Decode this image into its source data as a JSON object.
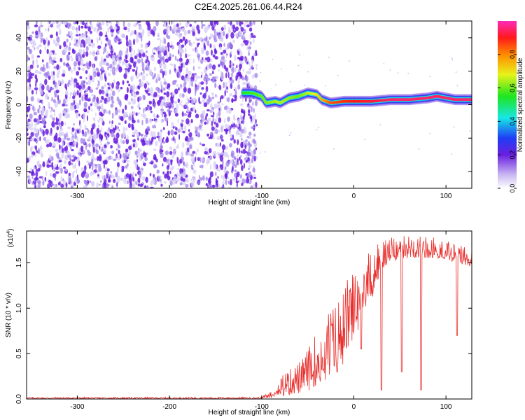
{
  "title": "C2E4.2025.261.06.44.R24",
  "chart_data": [
    {
      "type": "heatmap",
      "xlabel": "Height of straight line (km)",
      "ylabel": "Frequency (Hz)",
      "xlim": [
        -355,
        128
      ],
      "ylim": [
        -50,
        50
      ],
      "xticks": [
        -300,
        -200,
        -100,
        0,
        100
      ],
      "yticks": [
        -40,
        -20,
        0,
        20,
        40
      ],
      "noise_region": {
        "x_from": -355,
        "x_to": -110,
        "y_from": -50,
        "y_to": 50
      },
      "signal_trace": [
        {
          "x": -120,
          "y": 7
        },
        {
          "x": -110,
          "y": 7
        },
        {
          "x": -100,
          "y": 5
        },
        {
          "x": -95,
          "y": 1
        },
        {
          "x": -85,
          "y": 2
        },
        {
          "x": -80,
          "y": 1
        },
        {
          "x": -70,
          "y": 4
        },
        {
          "x": -60,
          "y": 5
        },
        {
          "x": -50,
          "y": 7
        },
        {
          "x": -40,
          "y": 6
        },
        {
          "x": -35,
          "y": 3
        },
        {
          "x": -25,
          "y": 1
        },
        {
          "x": -10,
          "y": 2
        },
        {
          "x": 0,
          "y": 2
        },
        {
          "x": 20,
          "y": 2
        },
        {
          "x": 40,
          "y": 3
        },
        {
          "x": 60,
          "y": 3
        },
        {
          "x": 80,
          "y": 4
        },
        {
          "x": 90,
          "y": 5
        },
        {
          "x": 110,
          "y": 3
        },
        {
          "x": 128,
          "y": 3
        }
      ],
      "trace_amplitude": [
        {
          "x": -120,
          "a": 0.55
        },
        {
          "x": -100,
          "a": 0.6
        },
        {
          "x": -80,
          "a": 0.65
        },
        {
          "x": -60,
          "a": 0.6
        },
        {
          "x": -40,
          "a": 0.7
        },
        {
          "x": -25,
          "a": 0.85
        },
        {
          "x": 0,
          "a": 0.9
        },
        {
          "x": 40,
          "a": 0.95
        },
        {
          "x": 90,
          "a": 0.95
        },
        {
          "x": 128,
          "a": 0.95
        }
      ],
      "colorbar": {
        "label": "Normalized spectral amplitude",
        "range": [
          0.0,
          1.0
        ],
        "ticks": [
          "0.0",
          "0.2",
          "0.4",
          "0.6",
          "0.8"
        ],
        "tick_values": [
          0.0,
          0.2,
          0.4,
          0.6,
          0.8
        ]
      }
    },
    {
      "type": "line",
      "xlabel": "Height of straight line (km)",
      "ylabel": "SNR (10 * v/v)",
      "multiplier_label": "(x10",
      "multiplier_exponent": "4",
      "xlim": [
        -355,
        128
      ],
      "ylim": [
        0,
        1.85
      ],
      "xticks": [
        -300,
        -200,
        -100,
        0,
        100
      ],
      "yticks": [
        "0.0",
        "0.5",
        "1.0",
        "1.5"
      ],
      "ytick_values": [
        0.0,
        0.5,
        1.0,
        1.5
      ],
      "line_color": "#e8302e",
      "envelope": [
        {
          "x": -355,
          "lo": 0.0,
          "hi": 0.02
        },
        {
          "x": -100,
          "lo": 0.0,
          "hi": 0.02
        },
        {
          "x": -90,
          "lo": 0.01,
          "hi": 0.1
        },
        {
          "x": -80,
          "lo": 0.03,
          "hi": 0.25
        },
        {
          "x": -60,
          "lo": 0.05,
          "hi": 0.4
        },
        {
          "x": -50,
          "lo": 0.08,
          "hi": 0.55
        },
        {
          "x": -40,
          "lo": 0.15,
          "hi": 0.75
        },
        {
          "x": -30,
          "lo": 0.2,
          "hi": 0.95
        },
        {
          "x": -20,
          "lo": 0.3,
          "hi": 1.05
        },
        {
          "x": -10,
          "lo": 0.4,
          "hi": 1.3
        },
        {
          "x": 0,
          "lo": 0.6,
          "hi": 1.4
        },
        {
          "x": 10,
          "lo": 0.9,
          "hi": 1.6
        },
        {
          "x": 20,
          "lo": 1.1,
          "hi": 1.65
        },
        {
          "x": 30,
          "lo": 1.4,
          "hi": 1.75
        },
        {
          "x": 50,
          "lo": 1.55,
          "hi": 1.8
        },
        {
          "x": 70,
          "lo": 1.55,
          "hi": 1.8
        },
        {
          "x": 90,
          "lo": 1.55,
          "hi": 1.78
        },
        {
          "x": 110,
          "lo": 1.5,
          "hi": 1.72
        },
        {
          "x": 128,
          "lo": 1.45,
          "hi": 1.65
        }
      ],
      "dips": [
        {
          "x": -18,
          "y": 0.3
        },
        {
          "x": 8,
          "y": 0.55
        },
        {
          "x": 30,
          "y": 0.1
        },
        {
          "x": 52,
          "y": 0.3
        },
        {
          "x": 73,
          "y": 0.1
        },
        {
          "x": 112,
          "y": 0.7
        }
      ]
    }
  ]
}
